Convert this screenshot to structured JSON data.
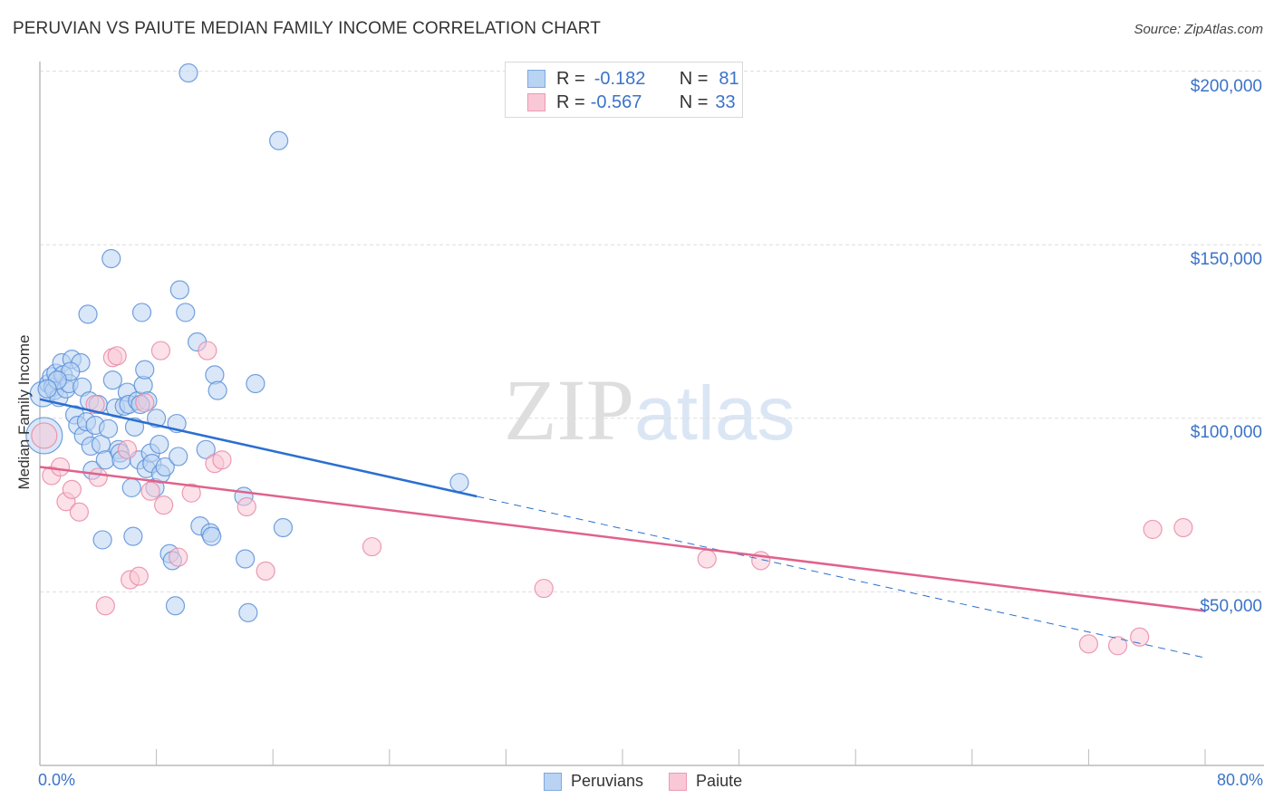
{
  "header": {
    "title": "PERUVIAN VS PAIUTE MEDIAN FAMILY INCOME CORRELATION CHART",
    "source": "Source: ZipAtlas.com"
  },
  "colors": {
    "peruvians_fill": "#b9d3f3",
    "peruvians_stroke": "#5b8fd8",
    "peruvians_line": "#2a6fd0",
    "paiute_fill": "#f9c8d6",
    "paiute_stroke": "#e98aa6",
    "paiute_line": "#e0628c",
    "tick_text": "#3b73c8",
    "grid": "#dddddd"
  },
  "legend_top": {
    "rows": [
      {
        "series": "Peruvians",
        "r_label": "R =",
        "r_value": "-0.182",
        "n_label": "N =",
        "n_value": "81"
      },
      {
        "series": "Paiute",
        "r_label": "R =",
        "r_value": "-0.567",
        "n_label": "N =",
        "n_value": "33"
      }
    ]
  },
  "legend_bottom": {
    "items": [
      {
        "label": "Peruvians"
      },
      {
        "label": "Paiute"
      }
    ]
  },
  "watermark": {
    "zip": "ZIP",
    "atlas": "atlas"
  },
  "axes": {
    "ylabel": "Median Family Income",
    "yticks": [
      "$200,000",
      "$150,000",
      "$100,000",
      "$50,000"
    ],
    "xticks": [
      "0.0%",
      "80.0%"
    ]
  },
  "chart_data": {
    "type": "scatter",
    "title": "PERUVIAN VS PAIUTE MEDIAN FAMILY INCOME CORRELATION CHART",
    "xlabel": "",
    "ylabel": "Median Family Income",
    "xlim": [
      0,
      80
    ],
    "ylim": [
      0,
      210000
    ],
    "x_unit": "%",
    "ytick_values": [
      50000,
      100000,
      150000,
      200000
    ],
    "ytick_labels": [
      "$50,000",
      "$100,000",
      "$150,000",
      "$200,000"
    ],
    "xtick_labels": [
      "0.0%",
      "80.0%"
    ],
    "grid": true,
    "legend_position": "top-center and bottom-center",
    "series": [
      {
        "name": "Peruvians",
        "R": -0.182,
        "N": 81,
        "trend": {
          "x0": 0,
          "y0": 105500,
          "x1": 30,
          "y1": 77500,
          "dashed_extension_to": [
            80,
            31000
          ]
        },
        "points": [
          [
            0.2,
            107000,
            2
          ],
          [
            0.3,
            95000,
            3
          ],
          [
            0.6,
            110000,
            1
          ],
          [
            0.8,
            112000,
            1
          ],
          [
            0.9,
            109000,
            1
          ],
          [
            1.0,
            108000,
            1
          ],
          [
            1.1,
            113000,
            1
          ],
          [
            1.3,
            106000,
            1
          ],
          [
            1.5,
            116000,
            1
          ],
          [
            1.6,
            112500,
            1
          ],
          [
            1.8,
            108500,
            1
          ],
          [
            2.0,
            110000,
            1
          ],
          [
            2.2,
            117000,
            1
          ],
          [
            2.4,
            101000,
            1
          ],
          [
            2.6,
            98000,
            1
          ],
          [
            2.8,
            116000,
            1
          ],
          [
            2.9,
            109000,
            1
          ],
          [
            3.0,
            95000,
            1
          ],
          [
            3.2,
            99000,
            1
          ],
          [
            3.3,
            130000,
            1
          ],
          [
            3.4,
            105000,
            1
          ],
          [
            3.5,
            92000,
            1
          ],
          [
            3.6,
            85000,
            1
          ],
          [
            3.8,
            98000,
            1
          ],
          [
            4.0,
            104000,
            1
          ],
          [
            4.2,
            92500,
            1
          ],
          [
            4.3,
            65000,
            1
          ],
          [
            4.5,
            88000,
            1
          ],
          [
            4.7,
            97000,
            1
          ],
          [
            4.9,
            146000,
            1
          ],
          [
            5.0,
            111000,
            1
          ],
          [
            5.2,
            103000,
            1
          ],
          [
            5.4,
            91000,
            1
          ],
          [
            5.5,
            90000,
            1
          ],
          [
            5.6,
            88000,
            1
          ],
          [
            5.8,
            103500,
            1
          ],
          [
            6.0,
            107500,
            1
          ],
          [
            6.1,
            104000,
            1
          ],
          [
            6.3,
            80000,
            1
          ],
          [
            6.4,
            66000,
            1
          ],
          [
            6.5,
            97500,
            1
          ],
          [
            6.7,
            105000,
            1
          ],
          [
            6.8,
            88000,
            1
          ],
          [
            7.0,
            130500,
            1
          ],
          [
            7.1,
            109500,
            1
          ],
          [
            7.2,
            114000,
            1
          ],
          [
            7.3,
            85500,
            1
          ],
          [
            7.4,
            105000,
            1
          ],
          [
            7.6,
            90000,
            1
          ],
          [
            7.7,
            87000,
            1
          ],
          [
            7.9,
            80000,
            1
          ],
          [
            8.0,
            100000,
            1
          ],
          [
            8.2,
            92500,
            1
          ],
          [
            8.3,
            84000,
            1
          ],
          [
            8.6,
            86000,
            1
          ],
          [
            8.9,
            61000,
            1
          ],
          [
            9.1,
            59000,
            1
          ],
          [
            9.3,
            46000,
            1
          ],
          [
            9.4,
            98500,
            1
          ],
          [
            9.5,
            89000,
            1
          ],
          [
            9.6,
            137000,
            1
          ],
          [
            10.0,
            130500,
            1
          ],
          [
            10.2,
            199500,
            1
          ],
          [
            10.8,
            122000,
            1
          ],
          [
            11.0,
            69000,
            1
          ],
          [
            11.4,
            91000,
            1
          ],
          [
            11.7,
            67000,
            1
          ],
          [
            11.8,
            66000,
            1
          ],
          [
            12.0,
            112500,
            1
          ],
          [
            12.2,
            108000,
            1
          ],
          [
            14.0,
            77500,
            1
          ],
          [
            14.1,
            59500,
            1
          ],
          [
            14.3,
            44000,
            1
          ],
          [
            14.8,
            110000,
            1
          ],
          [
            16.4,
            180000,
            1
          ],
          [
            16.7,
            68500,
            1
          ],
          [
            28.8,
            81500,
            1
          ],
          [
            2.1,
            113500,
            1
          ],
          [
            1.2,
            111000,
            1
          ],
          [
            0.5,
            108500,
            1
          ],
          [
            6.9,
            104000,
            1
          ]
        ]
      },
      {
        "name": "Paiute",
        "R": -0.567,
        "N": 33,
        "trend": {
          "x0": 0,
          "y0": 86000,
          "x1": 80,
          "y1": 44500
        },
        "points": [
          [
            0.3,
            95000,
            2
          ],
          [
            0.8,
            83500,
            1
          ],
          [
            1.4,
            86000,
            1
          ],
          [
            1.8,
            76000,
            1
          ],
          [
            2.2,
            79500,
            1
          ],
          [
            2.7,
            73000,
            1
          ],
          [
            3.8,
            104000,
            1
          ],
          [
            4.0,
            83000,
            1
          ],
          [
            4.5,
            46000,
            1
          ],
          [
            5.0,
            117500,
            1
          ],
          [
            5.3,
            118000,
            1
          ],
          [
            6.0,
            91000,
            1
          ],
          [
            6.2,
            53500,
            1
          ],
          [
            6.8,
            54500,
            1
          ],
          [
            7.2,
            104500,
            1
          ],
          [
            7.6,
            79000,
            1
          ],
          [
            8.3,
            119500,
            1
          ],
          [
            8.5,
            75000,
            1
          ],
          [
            9.5,
            60000,
            1
          ],
          [
            10.4,
            78500,
            1
          ],
          [
            11.5,
            119500,
            1
          ],
          [
            12.0,
            87000,
            1
          ],
          [
            12.5,
            88000,
            1
          ],
          [
            14.2,
            74500,
            1
          ],
          [
            15.5,
            56000,
            1
          ],
          [
            22.8,
            63000,
            1
          ],
          [
            34.6,
            51000,
            1
          ],
          [
            45.8,
            59500,
            1
          ],
          [
            49.5,
            59000,
            1
          ],
          [
            72.0,
            35000,
            1
          ],
          [
            74.0,
            34500,
            1
          ],
          [
            75.5,
            37000,
            1
          ],
          [
            76.4,
            68000,
            1
          ],
          [
            78.5,
            68500,
            1
          ]
        ]
      }
    ]
  }
}
